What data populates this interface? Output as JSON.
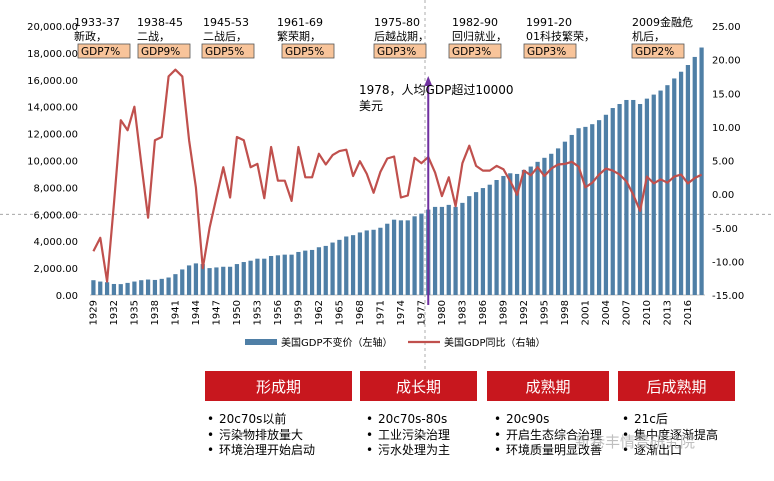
{
  "chart_data": {
    "type": "bar+line",
    "x": [
      1929,
      1930,
      1931,
      1932,
      1933,
      1934,
      1935,
      1936,
      1937,
      1938,
      1939,
      1940,
      1941,
      1942,
      1943,
      1944,
      1945,
      1946,
      1947,
      1948,
      1949,
      1950,
      1951,
      1952,
      1953,
      1954,
      1955,
      1956,
      1957,
      1958,
      1959,
      1960,
      1961,
      1962,
      1963,
      1964,
      1965,
      1966,
      1967,
      1968,
      1969,
      1970,
      1971,
      1972,
      1973,
      1974,
      1975,
      1976,
      1977,
      1978,
      1979,
      1980,
      1981,
      1982,
      1983,
      1984,
      1985,
      1986,
      1987,
      1988,
      1989,
      1990,
      1991,
      1992,
      1993,
      1994,
      1995,
      1996,
      1997,
      1998,
      1999,
      2000,
      2001,
      2002,
      2003,
      2004,
      2005,
      2006,
      2007,
      2008,
      2009,
      2010,
      2011,
      2012,
      2013,
      2014,
      2015,
      2016,
      2017,
      2018
    ],
    "x_tick_labels": [
      "1929",
      "1932",
      "1935",
      "1938",
      "1941",
      "1944",
      "1947",
      "1950",
      "1953",
      "1956",
      "1959",
      "1962",
      "1965",
      "1968",
      "1971",
      "1974",
      "1977",
      "1980",
      "1983",
      "1986",
      "1989",
      "1992",
      "1995",
      "1998",
      "2001",
      "2004",
      "2007",
      "2010",
      "2013",
      "2016"
    ],
    "series": [
      {
        "name": "美国GDP不变价（左轴）",
        "type": "bar",
        "axis": "left",
        "values": [
          1100,
          1000,
          950,
          820,
          810,
          900,
          1000,
          1100,
          1150,
          1120,
          1200,
          1300,
          1550,
          1900,
          2200,
          2350,
          2300,
          2000,
          2050,
          2100,
          2100,
          2300,
          2450,
          2550,
          2700,
          2700,
          2900,
          2950,
          3000,
          3000,
          3200,
          3300,
          3350,
          3550,
          3650,
          3900,
          4100,
          4350,
          4450,
          4650,
          4800,
          4850,
          5000,
          5300,
          5600,
          5550,
          5550,
          5850,
          6050,
          6350,
          6550,
          6550,
          6700,
          6550,
          6850,
          7350,
          7650,
          7950,
          8200,
          8550,
          8850,
          9050,
          9000,
          9300,
          9550,
          9900,
          10200,
          10500,
          10900,
          11400,
          11900,
          12400,
          12500,
          12700,
          13000,
          13400,
          13900,
          14200,
          14500,
          14500,
          14200,
          14600,
          14900,
          15200,
          15600,
          16100,
          16600,
          17100,
          17700,
          18400
        ]
      },
      {
        "name": "美国GDP同比（右轴）",
        "type": "line",
        "axis": "right",
        "values": [
          -8.5,
          -6.5,
          -13,
          -1.5,
          11,
          9.5,
          13,
          4.5,
          -3.5,
          8,
          8.5,
          17.5,
          18.5,
          17.5,
          8,
          1,
          -11,
          -5,
          -0.5,
          4,
          -0.5,
          8.5,
          8,
          4,
          4.5,
          -0.6,
          7,
          2,
          2,
          -1,
          7,
          2.5,
          2.5,
          6,
          4.4,
          5.8,
          6.4,
          6.6,
          2.7,
          4.9,
          3,
          0.2,
          3.3,
          5.3,
          5.6,
          -0.5,
          -0.2,
          5.4,
          4.6,
          5.5,
          3.2,
          -0.3,
          2.5,
          -1.8,
          4.6,
          7.2,
          4.2,
          3.5,
          3.5,
          4.2,
          3.7,
          1.9,
          -0.1,
          3.5,
          2.8,
          4,
          2.7,
          3.8,
          4.4,
          4.5,
          4.8,
          4.1,
          1,
          1.7,
          2.9,
          3.8,
          3.5,
          2.9,
          1.9,
          -0.1,
          -2.5,
          2.6,
          1.6,
          2.2,
          1.7,
          2.6,
          2.9,
          1.6,
          2.4,
          2.9
        ]
      }
    ],
    "y_left": {
      "range": [
        0,
        20000
      ],
      "ticks": [
        "0.00",
        "2,000.00",
        "4,000.00",
        "6,000.00",
        "8,000.00",
        "10,000.00",
        "12,000.00",
        "14,000.00",
        "16,000.00",
        "18,000.00",
        "20,000.00"
      ]
    },
    "y_right": {
      "range": [
        -15,
        25
      ],
      "ticks": [
        "-15.00",
        "-10.00",
        "-5.00",
        "0.00",
        "5.00",
        "10.00",
        "15.00",
        "20.00",
        "25.00"
      ]
    },
    "legend": {
      "placement": "bottom"
    },
    "colors": {
      "bar": "#4f7fa6",
      "line": "#c0504d",
      "arrow": "#7030a0",
      "period_box": "#f8c49a",
      "stage": "#c8171e"
    },
    "periods": [
      {
        "title": "1933-37新政，",
        "gdp": "GDP7%"
      },
      {
        "title": "1938-45二战，",
        "gdp": "GDP9%"
      },
      {
        "title": "1945-53二战后，",
        "gdp": "GDP5%"
      },
      {
        "title": "1961-69繁荣期，",
        "gdp": "GDP5%"
      },
      {
        "title": "1975-80后越战期，",
        "gdp": "GDP3%"
      },
      {
        "title": "1982-90回归就业，",
        "gdp": "GDP3%"
      },
      {
        "title": "1991-2001科技繁荣，",
        "gdp": "GDP3%"
      },
      {
        "title": "2009金融危机后，",
        "gdp": "GDP2%"
      }
    ],
    "annotation": "1978，人均GDP超过10000美元"
  },
  "stages": [
    {
      "label": "形成期",
      "items": [
        "20c70s以前",
        "污染物排放量大",
        "环境治理开始启动"
      ]
    },
    {
      "label": "成长期",
      "items": [
        "20c70s-80s",
        "工业污染治理",
        "污水处理为主"
      ]
    },
    {
      "label": "成熟期",
      "items": [
        "20c90s",
        "开启生态综合治理",
        "环境质量明显改善"
      ]
    },
    {
      "label": "后成熟期",
      "items": [
        "21c后",
        "集中度逐渐提高",
        "逐渐出口"
      ]
    }
  ],
  "watermark": "新巷丰情景研究院"
}
